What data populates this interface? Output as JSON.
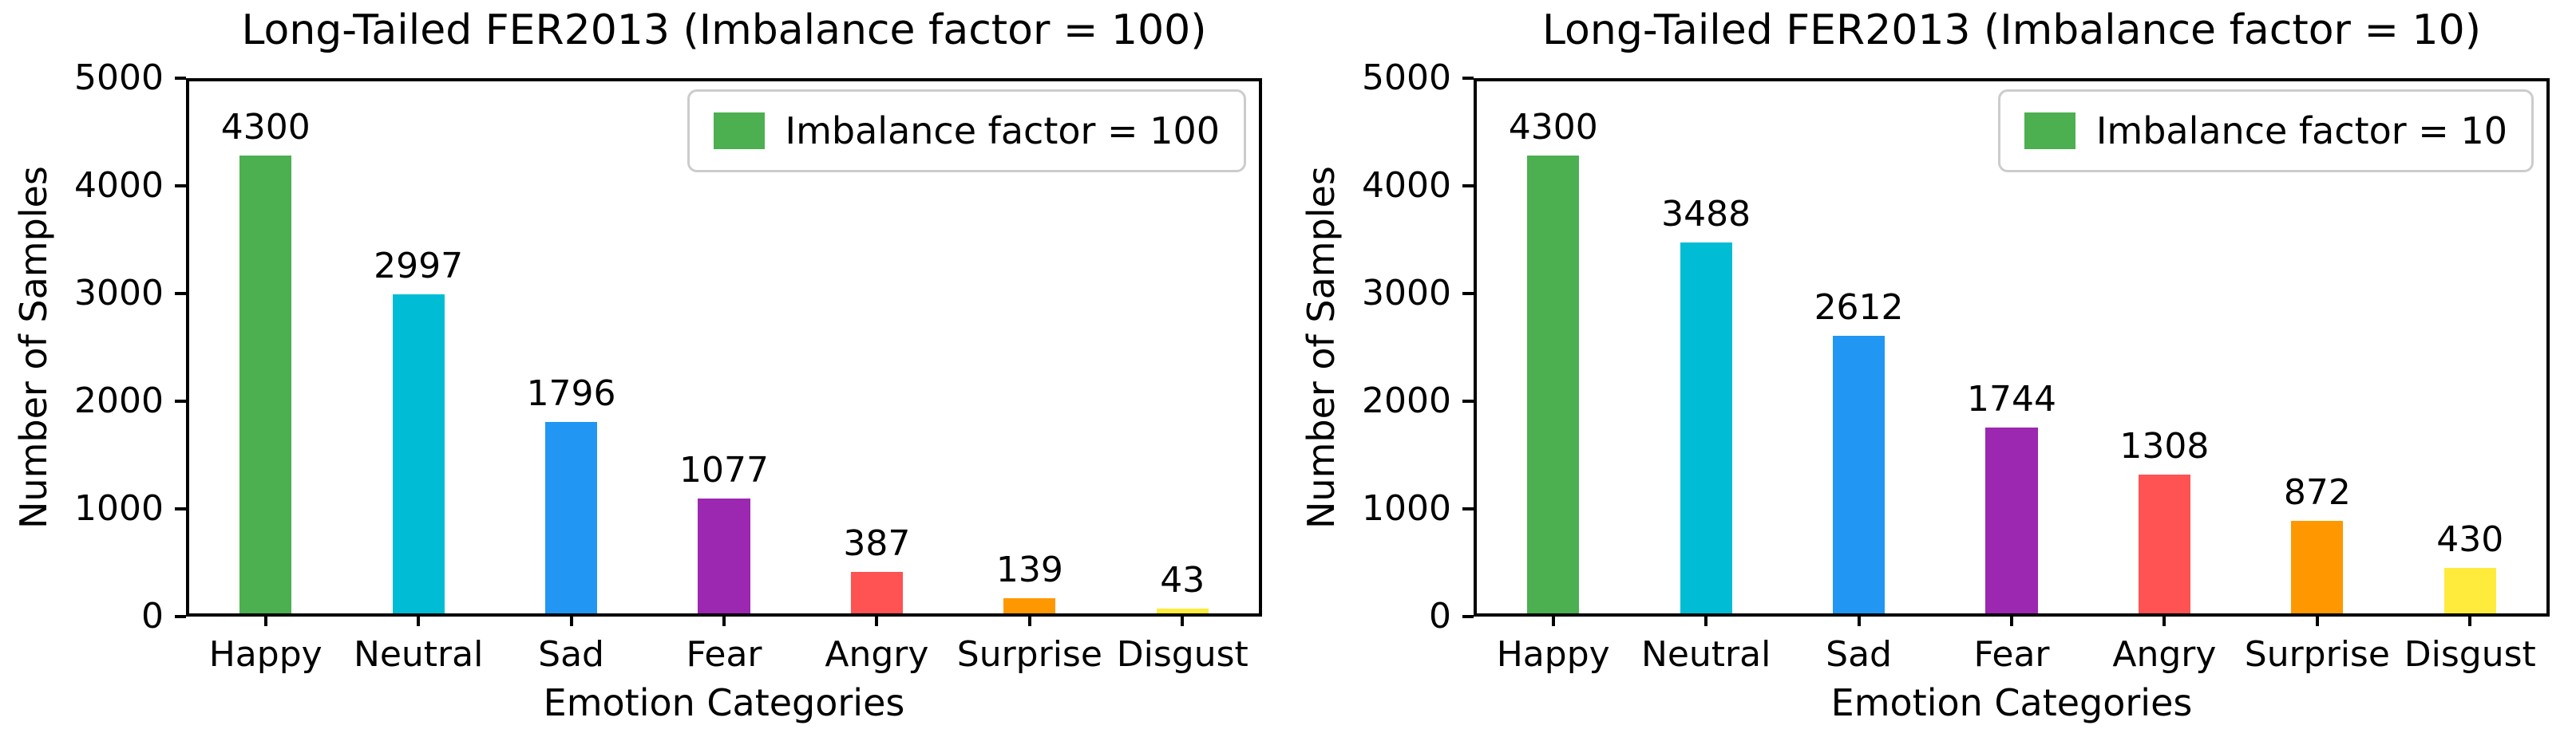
{
  "page": {
    "background": "#ffffff"
  },
  "chart_data": [
    {
      "type": "bar",
      "title": "Long-Tailed FER2013 (Imbalance factor = 100)",
      "xlabel": "Emotion Categories",
      "ylabel": "Number of Samples",
      "categories": [
        "Happy",
        "Neutral",
        "Sad",
        "Fear",
        "Angry",
        "Surprise",
        "Disgust"
      ],
      "values": [
        4300,
        2997,
        1796,
        1077,
        387,
        139,
        43
      ],
      "value_labels": [
        "4300",
        "2997",
        "1796",
        "1077",
        "387",
        "139",
        "43"
      ],
      "bar_colors": [
        "#4CAF50",
        "#00BCD4",
        "#2196F3",
        "#9C27B0",
        "#FF5252",
        "#FF9800",
        "#FFEB3B"
      ],
      "legend": {
        "label": "Imbalance factor = 100",
        "swatch_color": "#4CAF50",
        "position": "upper right"
      },
      "ylim": [
        0,
        5000
      ],
      "yticks": [
        "0",
        "1000",
        "2000",
        "3000",
        "4000",
        "5000"
      ],
      "grid": false,
      "bar_value_labels_shown": true
    },
    {
      "type": "bar",
      "title": "Long-Tailed FER2013 (Imbalance factor = 10)",
      "xlabel": "Emotion Categories",
      "ylabel": "Number of Samples",
      "categories": [
        "Happy",
        "Neutral",
        "Sad",
        "Fear",
        "Angry",
        "Surprise",
        "Disgust"
      ],
      "values": [
        4300,
        3488,
        2612,
        1744,
        1308,
        872,
        430
      ],
      "value_labels": [
        "4300",
        "3488",
        "2612",
        "1744",
        "1308",
        "872",
        "430"
      ],
      "bar_colors": [
        "#4CAF50",
        "#00BCD4",
        "#2196F3",
        "#9C27B0",
        "#FF5252",
        "#FF9800",
        "#FFEB3B"
      ],
      "legend": {
        "label": "Imbalance factor = 10",
        "swatch_color": "#4CAF50",
        "position": "upper right"
      },
      "ylim": [
        0,
        5000
      ],
      "yticks": [
        "0",
        "1000",
        "2000",
        "3000",
        "4000",
        "5000"
      ],
      "grid": false,
      "bar_value_labels_shown": true
    }
  ],
  "axis": {
    "color": "#000000",
    "tick_color": "#000000",
    "text_color": "#000000"
  }
}
